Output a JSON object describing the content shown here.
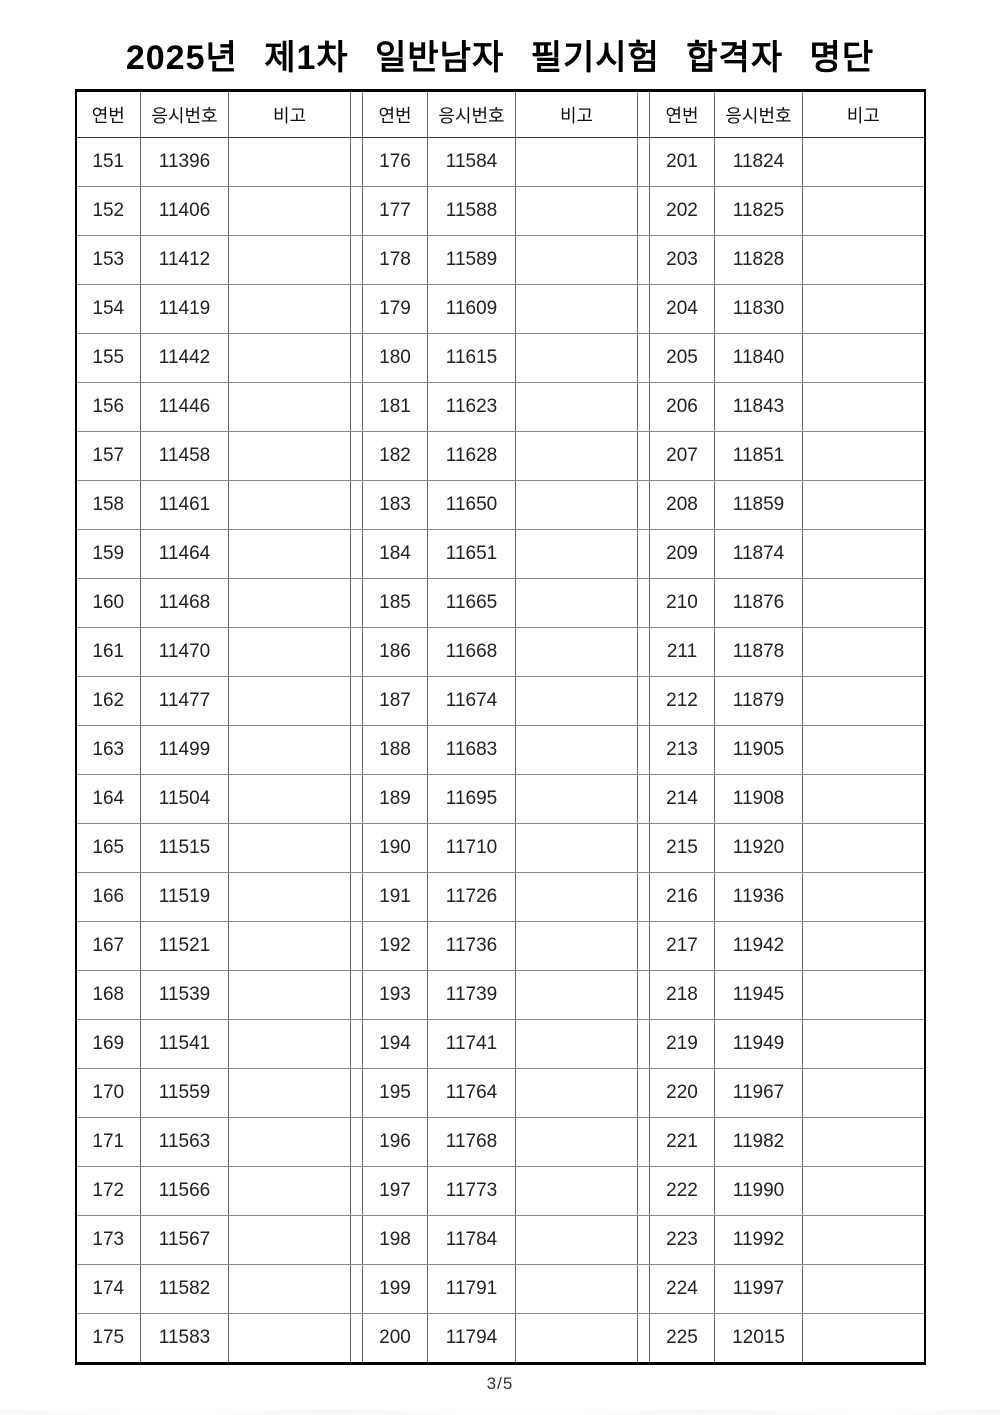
{
  "title": "2025년 제1차 일반남자 필기시험 합격자 명단",
  "page_footer": "3/5",
  "table": {
    "headers": [
      "연번",
      "응시번호",
      "비고"
    ],
    "groups": [
      {
        "rows": [
          [
            "151",
            "11396",
            ""
          ],
          [
            "152",
            "11406",
            ""
          ],
          [
            "153",
            "11412",
            ""
          ],
          [
            "154",
            "11419",
            ""
          ],
          [
            "155",
            "11442",
            ""
          ],
          [
            "156",
            "11446",
            ""
          ],
          [
            "157",
            "11458",
            ""
          ],
          [
            "158",
            "11461",
            ""
          ],
          [
            "159",
            "11464",
            ""
          ],
          [
            "160",
            "11468",
            ""
          ],
          [
            "161",
            "11470",
            ""
          ],
          [
            "162",
            "11477",
            ""
          ],
          [
            "163",
            "11499",
            ""
          ],
          [
            "164",
            "11504",
            ""
          ],
          [
            "165",
            "11515",
            ""
          ],
          [
            "166",
            "11519",
            ""
          ],
          [
            "167",
            "11521",
            ""
          ],
          [
            "168",
            "11539",
            ""
          ],
          [
            "169",
            "11541",
            ""
          ],
          [
            "170",
            "11559",
            ""
          ],
          [
            "171",
            "11563",
            ""
          ],
          [
            "172",
            "11566",
            ""
          ],
          [
            "173",
            "11567",
            ""
          ],
          [
            "174",
            "11582",
            ""
          ],
          [
            "175",
            "11583",
            ""
          ]
        ]
      },
      {
        "rows": [
          [
            "176",
            "11584",
            ""
          ],
          [
            "177",
            "11588",
            ""
          ],
          [
            "178",
            "11589",
            ""
          ],
          [
            "179",
            "11609",
            ""
          ],
          [
            "180",
            "11615",
            ""
          ],
          [
            "181",
            "11623",
            ""
          ],
          [
            "182",
            "11628",
            ""
          ],
          [
            "183",
            "11650",
            ""
          ],
          [
            "184",
            "11651",
            ""
          ],
          [
            "185",
            "11665",
            ""
          ],
          [
            "186",
            "11668",
            ""
          ],
          [
            "187",
            "11674",
            ""
          ],
          [
            "188",
            "11683",
            ""
          ],
          [
            "189",
            "11695",
            ""
          ],
          [
            "190",
            "11710",
            ""
          ],
          [
            "191",
            "11726",
            ""
          ],
          [
            "192",
            "11736",
            ""
          ],
          [
            "193",
            "11739",
            ""
          ],
          [
            "194",
            "11741",
            ""
          ],
          [
            "195",
            "11764",
            ""
          ],
          [
            "196",
            "11768",
            ""
          ],
          [
            "197",
            "11773",
            ""
          ],
          [
            "198",
            "11784",
            ""
          ],
          [
            "199",
            "11791",
            ""
          ],
          [
            "200",
            "11794",
            ""
          ]
        ]
      },
      {
        "rows": [
          [
            "201",
            "11824",
            ""
          ],
          [
            "202",
            "11825",
            ""
          ],
          [
            "203",
            "11828",
            ""
          ],
          [
            "204",
            "11830",
            ""
          ],
          [
            "205",
            "11840",
            ""
          ],
          [
            "206",
            "11843",
            ""
          ],
          [
            "207",
            "11851",
            ""
          ],
          [
            "208",
            "11859",
            ""
          ],
          [
            "209",
            "11874",
            ""
          ],
          [
            "210",
            "11876",
            ""
          ],
          [
            "211",
            "11878",
            ""
          ],
          [
            "212",
            "11879",
            ""
          ],
          [
            "213",
            "11905",
            ""
          ],
          [
            "214",
            "11908",
            ""
          ],
          [
            "215",
            "11920",
            ""
          ],
          [
            "216",
            "11936",
            ""
          ],
          [
            "217",
            "11942",
            ""
          ],
          [
            "218",
            "11945",
            ""
          ],
          [
            "219",
            "11949",
            ""
          ],
          [
            "220",
            "11967",
            ""
          ],
          [
            "221",
            "11982",
            ""
          ],
          [
            "222",
            "11990",
            ""
          ],
          [
            "223",
            "11992",
            ""
          ],
          [
            "224",
            "11997",
            ""
          ],
          [
            "225",
            "12015",
            ""
          ]
        ]
      }
    ]
  },
  "colors": {
    "text": "#1c1c1c",
    "outer_border": "#000000",
    "inner_border": "#6e6e6e",
    "background": "#ffffff"
  }
}
